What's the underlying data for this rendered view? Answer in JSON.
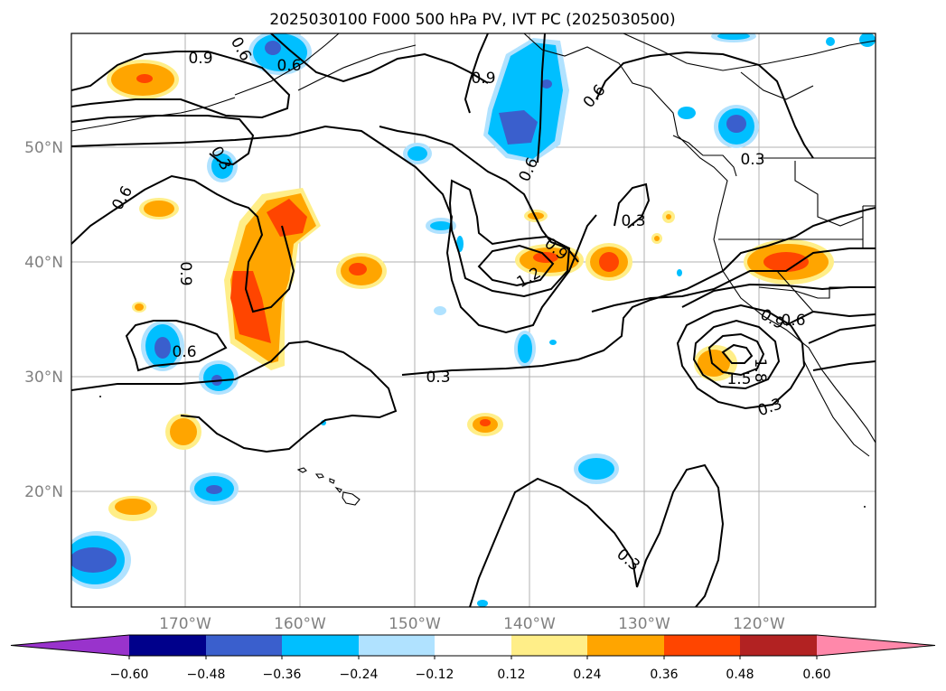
{
  "title": "2025030100 F000 500 hPa PV, IVT PC (2025030500)",
  "lat_labels": [
    "50°N",
    "40°N",
    "30°N",
    "20°N"
  ],
  "lon_labels": [
    "170°W",
    "160°W",
    "150°W",
    "140°W",
    "130°W",
    "120°W"
  ],
  "colorbar": {
    "ticks": [
      "−0.60",
      "−0.48",
      "−0.36",
      "−0.24",
      "−0.12",
      "0.12",
      "0.24",
      "0.36",
      "0.48",
      "0.60"
    ],
    "colors": [
      "#9933cc",
      "#00008b",
      "#3a5fcd",
      "#00bfff",
      "#b0e2ff",
      "#ffffff",
      "#ffee88",
      "#ffa500",
      "#ff4500",
      "#b22222",
      "#ff88aa"
    ]
  },
  "contour_labels": {
    "c1": "0.9",
    "c2": "0.6",
    "c3": "0.9",
    "c4": "0.6",
    "c5": "0.6",
    "c6": "0.9",
    "c7": "0.6",
    "c8": "0.3",
    "c9": "0.9",
    "c10": "1.2",
    "c11": "0.3",
    "c12": "0.3",
    "c13": "0.3",
    "c14": "0.6",
    "c15": "0.9",
    "c16": "0.3",
    "c17": "1.5",
    "c18": "1.8",
    "c19": "0.3",
    "c20": "0.6",
    "c21": "0.6"
  }
}
